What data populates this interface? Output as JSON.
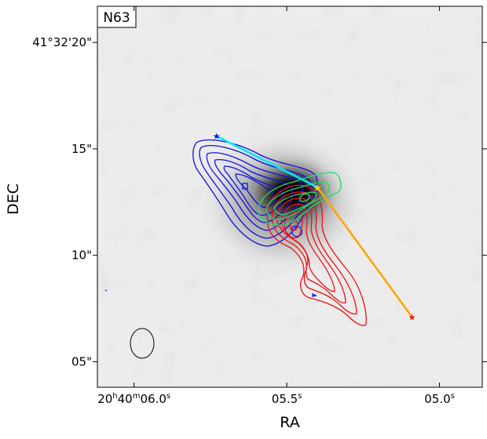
{
  "chart_data": {
    "type": "contour",
    "label": "N63",
    "xlabel": "RA",
    "ylabel": "DEC",
    "x_ticks": [
      {
        "text": "20h40m06.0s",
        "h": "20",
        "m": "40",
        "s": "06.0",
        "value": 6.0
      },
      {
        "text": "05.5s",
        "base": "05.5",
        "sup": "s",
        "value": 5.5
      },
      {
        "text": "05.0s",
        "base": "05.0",
        "sup": "s",
        "value": 5.0
      }
    ],
    "y_ticks": [
      {
        "text": "41°32'20\"",
        "value": 20
      },
      {
        "text": "15\"",
        "value": 15
      },
      {
        "text": "10\"",
        "value": 10
      },
      {
        "text": "05\"",
        "value": 5
      }
    ],
    "xlim": [
      6.12,
      4.86
    ],
    "ylim": [
      3.8,
      21.7
    ],
    "background": "grayscale image",
    "colors": {
      "blue_contours": "#1010e0",
      "red_contours": "#ee1111",
      "green_contours": "#22dd66",
      "cyan_jet": "#00e5ff",
      "orange_jet": "#ffa500",
      "beam": "#000000"
    },
    "source_center": {
      "x": 5.4,
      "y": 13.2
    },
    "jets": [
      {
        "name": "cyan",
        "points": [
          {
            "x": 5.73,
            "y": 15.6
          },
          {
            "x": 5.4,
            "y": 13.2
          }
        ]
      },
      {
        "name": "orange",
        "points": [
          {
            "x": 5.4,
            "y": 13.2
          },
          {
            "x": 5.09,
            "y": 7.1
          }
        ]
      }
    ],
    "beam": {
      "x": 5.98,
      "y": 6.2
    }
  }
}
